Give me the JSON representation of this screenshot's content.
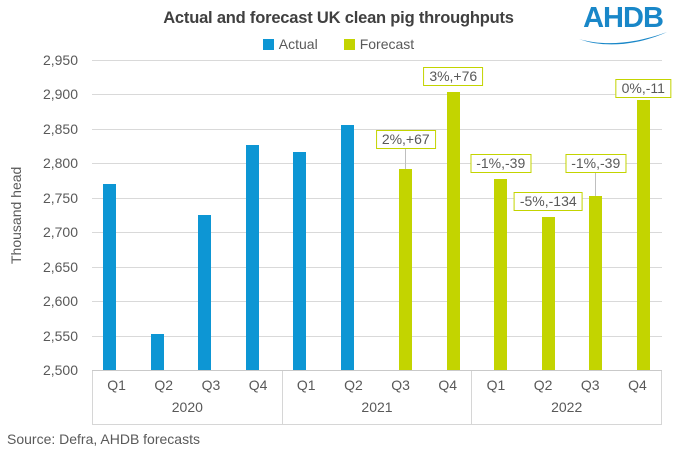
{
  "title": "Actual and forecast UK clean pig throughputs",
  "logo": {
    "text": "AHDB",
    "color": "#1987c8"
  },
  "source": "Source:  Defra, AHDB forecasts",
  "colors": {
    "actual": "#0d96d4",
    "forecast": "#c3d400",
    "grid": "#d9d9d9",
    "axis_text": "#595959",
    "title_text": "#404040"
  },
  "chart_data": {
    "type": "bar",
    "title": "Actual and forecast UK clean pig throughputs",
    "xlabel": "",
    "ylabel": "Thousand head",
    "ylim": [
      2500,
      2950
    ],
    "y_tick_step": 50,
    "y_ticks": [
      "2,950",
      "2,900",
      "2,850",
      "2,800",
      "2,750",
      "2,700",
      "2,650",
      "2,600",
      "2,550",
      "2,500"
    ],
    "grid": true,
    "legend_position": "top-center",
    "series": [
      {
        "name": "Actual",
        "color": "#0d96d4"
      },
      {
        "name": "Forecast",
        "color": "#c3d400"
      }
    ],
    "groups": [
      {
        "year": "2020",
        "bars": [
          {
            "quarter": "Q1",
            "series": "Actual",
            "value": 2770
          },
          {
            "quarter": "Q2",
            "series": "Actual",
            "value": 2552
          },
          {
            "quarter": "Q3",
            "series": "Actual",
            "value": 2725
          },
          {
            "quarter": "Q4",
            "series": "Actual",
            "value": 2827
          }
        ]
      },
      {
        "year": "2021",
        "bars": [
          {
            "quarter": "Q1",
            "series": "Actual",
            "value": 2817
          },
          {
            "quarter": "Q2",
            "series": "Actual",
            "value": 2856
          },
          {
            "quarter": "Q3",
            "series": "Forecast",
            "value": 2792,
            "label": "2%,+67"
          },
          {
            "quarter": "Q4",
            "series": "Forecast",
            "value": 2903,
            "label": "3%,+76"
          }
        ]
      },
      {
        "year": "2022",
        "bars": [
          {
            "quarter": "Q1",
            "series": "Forecast",
            "value": 2778,
            "label": "-1%,-39"
          },
          {
            "quarter": "Q2",
            "series": "Forecast",
            "value": 2722,
            "label": "-5%,-134"
          },
          {
            "quarter": "Q3",
            "series": "Forecast",
            "value": 2752,
            "label": "-1%,-39"
          },
          {
            "quarter": "Q4",
            "series": "Forecast",
            "value": 2892,
            "label": "0%,-11"
          }
        ]
      }
    ]
  }
}
